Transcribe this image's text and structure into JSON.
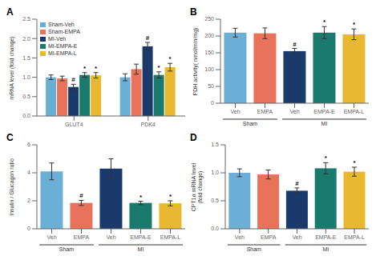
{
  "chart_data": [
    {
      "type": "bar",
      "title": "A",
      "ylabel": "mRNA level (fold change)",
      "categories": [
        "GLUT4",
        "PDK4"
      ],
      "series": [
        {
          "name": "Sham-Veh",
          "color": "#6baed6",
          "values": [
            1.0,
            1.0
          ],
          "errors": [
            0.06,
            0.09
          ],
          "annotations": [
            null,
            null
          ]
        },
        {
          "name": "Sham-EMPA",
          "color": "#e8735a",
          "values": [
            0.97,
            1.21
          ],
          "errors": [
            0.06,
            0.13
          ],
          "annotations": [
            null,
            null
          ]
        },
        {
          "name": "MI-Veh",
          "color": "#1a3a6b",
          "values": [
            0.75,
            1.8
          ],
          "errors": [
            0.07,
            0.1
          ],
          "annotations": [
            "#",
            "#"
          ]
        },
        {
          "name": "MI-EMPA-E",
          "color": "#1a7a6e",
          "values": [
            1.06,
            1.06
          ],
          "errors": [
            0.06,
            0.08
          ],
          "annotations": [
            "*",
            "*"
          ]
        },
        {
          "name": "MI-EMPA-L",
          "color": "#e8b830",
          "values": [
            1.05,
            1.26
          ],
          "errors": [
            0.07,
            0.1
          ],
          "annotations": [
            "*",
            "*"
          ]
        }
      ],
      "ylim": [
        0.0,
        2.5
      ],
      "yticks": [
        {
          "value": 0.0,
          "label": "0.0"
        },
        0.5,
        {
          "value": 1.0,
          "label": "1.0"
        },
        1.5,
        {
          "value": 2.0,
          "label": "2.0"
        },
        2.5
      ],
      "legend": "upper left",
      "grid": false
    },
    {
      "type": "bar",
      "title": "B",
      "ylabel": "PDH activity( nmol/min/mg)",
      "categories": [
        "Veh",
        "EMPA",
        "Veh",
        "EMPA-E",
        "EMPA-L"
      ],
      "group_labels": [
        "Sham",
        "Sham",
        "MI",
        "MI",
        "MI"
      ],
      "colors": [
        "#6baed6",
        "#e8735a",
        "#1a3a6b",
        "#1a7a6e",
        "#e8b830"
      ],
      "values": [
        210,
        208,
        155,
        210,
        205
      ],
      "errors": [
        13,
        16,
        8,
        18,
        16
      ],
      "annotations": [
        null,
        null,
        "#",
        "*",
        "*"
      ],
      "ylim": [
        0,
        250
      ],
      "yticks": [
        0,
        50,
        100,
        150,
        200,
        250
      ],
      "grid": false
    },
    {
      "type": "bar",
      "title": "C",
      "ylabel": "Insulin / Glucagon ratio",
      "categories": [
        "Veh",
        "EMPA",
        "Veh",
        "EMPA-E",
        "EMPA-L"
      ],
      "group_labels": [
        "Sham",
        "Sham",
        "MI",
        "MI",
        "MI"
      ],
      "colors": [
        "#6baed6",
        "#e8735a",
        "#1a3a6b",
        "#1a7a6e",
        "#e8b830"
      ],
      "values": [
        4.1,
        1.85,
        4.3,
        1.85,
        1.82
      ],
      "errors": [
        0.6,
        0.18,
        0.7,
        0.12,
        0.18
      ],
      "annotations": [
        null,
        "#",
        null,
        "*",
        "*"
      ],
      "ylim": [
        0,
        6
      ],
      "yticks": [
        0,
        2,
        4,
        6
      ],
      "grid": false
    },
    {
      "type": "bar",
      "title": "D",
      "ylabel": "CPT1α mRNA level\n(fold change)",
      "categories": [
        "Veh",
        "EMPA",
        "Veh",
        "EMPA-E",
        "EMPA-L"
      ],
      "group_labels": [
        "Sham",
        "Sham",
        "MI",
        "MI",
        "MI"
      ],
      "colors": [
        "#6baed6",
        "#e8735a",
        "#1a3a6b",
        "#1a7a6e",
        "#e8b830"
      ],
      "values": [
        1.0,
        0.97,
        0.68,
        1.08,
        1.02
      ],
      "errors": [
        0.07,
        0.08,
        0.05,
        0.1,
        0.08
      ],
      "annotations": [
        null,
        null,
        "#",
        "*",
        "*"
      ],
      "ylim": [
        0.0,
        1.5
      ],
      "yticks": [
        {
          "value": 0.0,
          "label": "0.0"
        },
        0.5,
        {
          "value": 1.0,
          "label": "1.0"
        },
        1.5
      ],
      "grid": false
    }
  ]
}
